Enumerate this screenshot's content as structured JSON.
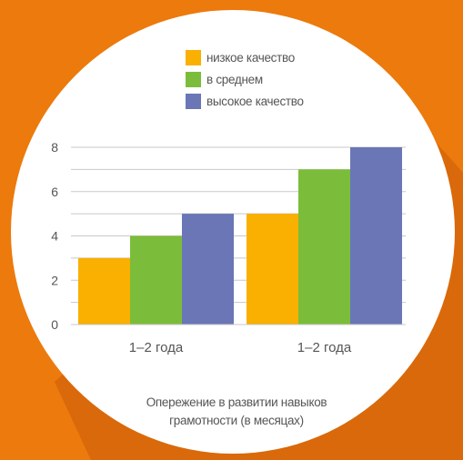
{
  "colors": {
    "background": "#ec7a0c",
    "shadow": "#d9690a",
    "circle": "#ffffff",
    "grid": "#c8c8c8",
    "text": "#555555"
  },
  "legend": {
    "items": [
      {
        "label": "низкое качество",
        "color": "#f9b000"
      },
      {
        "label": "в среднем",
        "color": "#7bbd3a"
      },
      {
        "label": "высокое качество",
        "color": "#6a76b5"
      }
    ]
  },
  "caption": {
    "line1": "Опережение в развитии навыков",
    "line2": "грамотности (в месяцах)"
  },
  "chart_data": {
    "type": "bar",
    "categories": [
      "1–2 года",
      "1–2 года"
    ],
    "series": [
      {
        "name": "низкое качество",
        "values": [
          3,
          5
        ],
        "color": "#f9b000"
      },
      {
        "name": "в среднем",
        "values": [
          4,
          7
        ],
        "color": "#7bbd3a"
      },
      {
        "name": "высокое качество",
        "values": [
          5,
          8
        ],
        "color": "#6a76b5"
      }
    ],
    "yticks": [
      0,
      2,
      4,
      6,
      8
    ],
    "ylim": [
      0,
      8
    ],
    "grid": true,
    "legend_position": "top",
    "xlabel": "Опережение в развитии навыков грамотности (в месяцах)",
    "ylabel": ""
  }
}
